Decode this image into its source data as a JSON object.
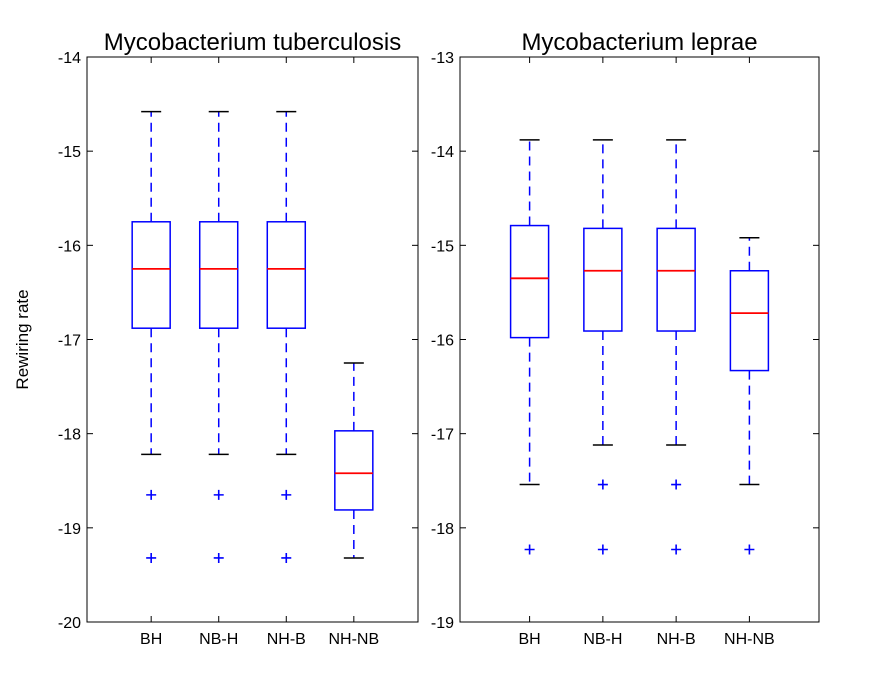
{
  "chart_data": [
    {
      "type": "box",
      "title": "Mycobacterium tuberculosis",
      "ylabel": "Rewiring rate",
      "xlabel": "",
      "categories": [
        "BH",
        "NB-H",
        "NH-B",
        "NH-NB"
      ],
      "ylim": [
        -20,
        -14
      ],
      "yticks": [
        "-20",
        "-19",
        "-18",
        "-17",
        "-16",
        "-15",
        "-14"
      ],
      "grid": false,
      "colors": {
        "box": "#0000ff",
        "median": "#ff0000",
        "whisker_cap": "#000000",
        "outlier": "#0000ff"
      },
      "boxes": [
        {
          "whisker_low": -18.22,
          "q1": -16.88,
          "median": -16.25,
          "q3": -15.75,
          "whisker_high": -14.58,
          "outliers": [
            -18.65,
            -19.32
          ]
        },
        {
          "whisker_low": -18.22,
          "q1": -16.88,
          "median": -16.25,
          "q3": -15.75,
          "whisker_high": -14.58,
          "outliers": [
            -18.65,
            -19.32
          ]
        },
        {
          "whisker_low": -18.22,
          "q1": -16.88,
          "median": -16.25,
          "q3": -15.75,
          "whisker_high": -14.58,
          "outliers": [
            -18.65,
            -19.32
          ]
        },
        {
          "whisker_low": -19.32,
          "q1": -18.81,
          "median": -18.42,
          "q3": -17.97,
          "whisker_high": -17.25,
          "outliers": []
        }
      ]
    },
    {
      "type": "box",
      "title": "Mycobacterium leprae",
      "ylabel": "",
      "xlabel": "",
      "categories": [
        "BH",
        "NB-H",
        "NH-B",
        "NH-NB"
      ],
      "ylim": [
        -19,
        -13
      ],
      "yticks": [
        "-19",
        "-18",
        "-17",
        "-16",
        "-15",
        "-14",
        "-13"
      ],
      "grid": false,
      "colors": {
        "box": "#0000ff",
        "median": "#ff0000",
        "whisker_cap": "#000000",
        "outlier": "#0000ff"
      },
      "boxes": [
        {
          "whisker_low": -17.54,
          "q1": -15.98,
          "median": -15.35,
          "q3": -14.79,
          "whisker_high": -13.88,
          "outliers": [
            -18.23
          ]
        },
        {
          "whisker_low": -17.12,
          "q1": -15.91,
          "median": -15.27,
          "q3": -14.82,
          "whisker_high": -13.88,
          "outliers": [
            -17.54,
            -18.23
          ]
        },
        {
          "whisker_low": -17.12,
          "q1": -15.91,
          "median": -15.27,
          "q3": -14.82,
          "whisker_high": -13.88,
          "outliers": [
            -17.54,
            -18.23
          ]
        },
        {
          "whisker_low": -17.54,
          "q1": -16.33,
          "median": -15.72,
          "q3": -15.27,
          "whisker_high": -14.92,
          "outliers": [
            -18.23
          ]
        }
      ]
    }
  ]
}
